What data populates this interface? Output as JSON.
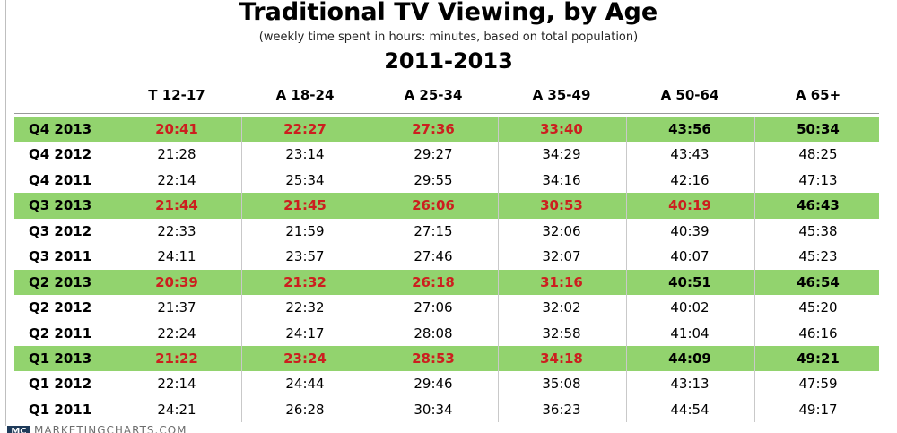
{
  "title": "Traditional TV Viewing, by Age",
  "subtitle": "(weekly time spent in hours: minutes, based on total population)",
  "period": "2011-2013",
  "footer": {
    "logo_text": "MC",
    "source": "MARKETINGCHARTS.COM"
  },
  "colors": {
    "highlight_row": "#92d36e",
    "highlight_text": "#cc1f1f"
  },
  "chart_data": {
    "type": "table",
    "title": "Traditional TV Viewing, by Age",
    "subtitle": "(weekly time spent in hours: minutes, based on total population)",
    "columns": [
      "T 12-17",
      "A 18-24",
      "A 25-34",
      "A 35-49",
      "A 50-64",
      "A 65+"
    ],
    "rows": [
      {
        "label": "Q4 2013",
        "highlight": true,
        "values": [
          "20:41",
          "22:27",
          "27:36",
          "33:40",
          "43:56",
          "50:34"
        ],
        "red": [
          true,
          true,
          true,
          true,
          false,
          false
        ]
      },
      {
        "label": "Q4 2012",
        "highlight": false,
        "values": [
          "21:28",
          "23:14",
          "29:27",
          "34:29",
          "43:43",
          "48:25"
        ],
        "red": [
          false,
          false,
          false,
          false,
          false,
          false
        ]
      },
      {
        "label": "Q4 2011",
        "highlight": false,
        "values": [
          "22:14",
          "25:34",
          "29:55",
          "34:16",
          "42:16",
          "47:13"
        ],
        "red": [
          false,
          false,
          false,
          false,
          false,
          false
        ]
      },
      {
        "label": "Q3 2013",
        "highlight": true,
        "values": [
          "21:44",
          "21:45",
          "26:06",
          "30:53",
          "40:19",
          "46:43"
        ],
        "red": [
          true,
          true,
          true,
          true,
          true,
          false
        ]
      },
      {
        "label": "Q3 2012",
        "highlight": false,
        "values": [
          "22:33",
          "21:59",
          "27:15",
          "32:06",
          "40:39",
          "45:38"
        ],
        "red": [
          false,
          false,
          false,
          false,
          false,
          false
        ]
      },
      {
        "label": "Q3 2011",
        "highlight": false,
        "values": [
          "24:11",
          "23:57",
          "27:46",
          "32:07",
          "40:07",
          "45:23"
        ],
        "red": [
          false,
          false,
          false,
          false,
          false,
          false
        ]
      },
      {
        "label": "Q2 2013",
        "highlight": true,
        "values": [
          "20:39",
          "21:32",
          "26:18",
          "31:16",
          "40:51",
          "46:54"
        ],
        "red": [
          true,
          true,
          true,
          true,
          false,
          false
        ]
      },
      {
        "label": "Q2 2012",
        "highlight": false,
        "values": [
          "21:37",
          "22:32",
          "27:06",
          "32:02",
          "40:02",
          "45:20"
        ],
        "red": [
          false,
          false,
          false,
          false,
          false,
          false
        ]
      },
      {
        "label": "Q2 2011",
        "highlight": false,
        "values": [
          "22:24",
          "24:17",
          "28:08",
          "32:58",
          "41:04",
          "46:16"
        ],
        "red": [
          false,
          false,
          false,
          false,
          false,
          false
        ]
      },
      {
        "label": "Q1 2013",
        "highlight": true,
        "values": [
          "21:22",
          "23:24",
          "28:53",
          "34:18",
          "44:09",
          "49:21"
        ],
        "red": [
          true,
          true,
          true,
          true,
          false,
          false
        ]
      },
      {
        "label": "Q1 2012",
        "highlight": false,
        "values": [
          "22:14",
          "24:44",
          "29:46",
          "35:08",
          "43:13",
          "47:59"
        ],
        "red": [
          false,
          false,
          false,
          false,
          false,
          false
        ]
      },
      {
        "label": "Q1 2011",
        "highlight": false,
        "values": [
          "24:21",
          "26:28",
          "30:34",
          "36:23",
          "44:54",
          "49:17"
        ],
        "red": [
          false,
          false,
          false,
          false,
          false,
          false
        ]
      }
    ]
  }
}
